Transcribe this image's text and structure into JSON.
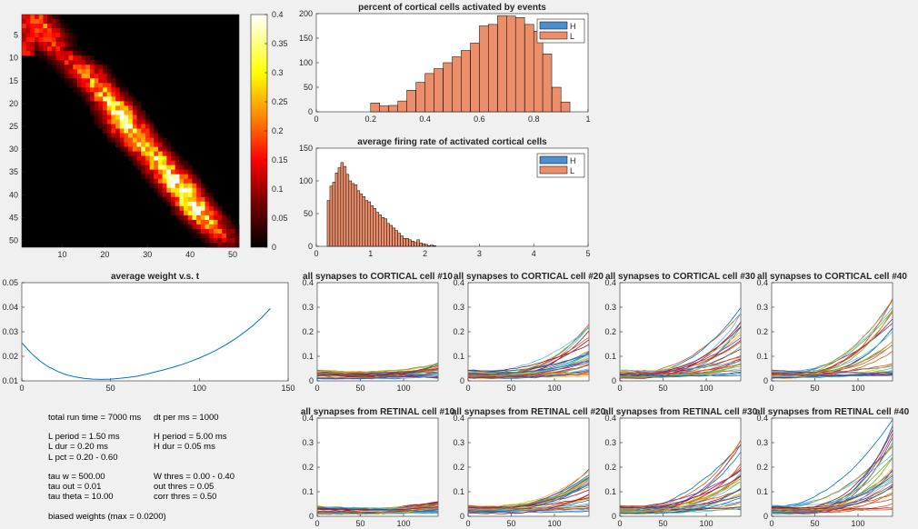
{
  "colors": {
    "background": "#f0f0f0",
    "H": "#4a90d0",
    "L": "#ec8e6a",
    "weight_line": "#0072bd",
    "line_palette": [
      "#0072bd",
      "#d95319",
      "#edb120",
      "#7e2f8e",
      "#77ac30",
      "#4dbeee",
      "#a2142f"
    ]
  },
  "chart_data": [
    {
      "id": "heatmap",
      "type": "heatmap",
      "title": "",
      "colormap": "hot",
      "rows": 51,
      "cols": 51,
      "xticks": [
        "10",
        "20",
        "30",
        "40",
        "50"
      ],
      "yticks": [
        "5",
        "10",
        "15",
        "20",
        "25",
        "30",
        "35",
        "40",
        "45",
        "50"
      ],
      "colorbar_ticks": [
        "0",
        "0.05",
        "0.1",
        "0.15",
        "0.2",
        "0.25",
        "0.3",
        "0.35",
        "0.4"
      ],
      "clim": [
        0,
        0.4
      ],
      "band": [
        {
          "row": 1,
          "centers": []
        },
        {
          "row": 3,
          "centers": [
            3,
            7
          ],
          "peak": 0.2
        },
        {
          "row": 5,
          "centers": [
            4,
            9
          ],
          "peak": 0.18
        },
        {
          "row": 8,
          "centers": [
            6,
            10
          ],
          "peak": 0.15
        },
        {
          "row": 12,
          "centers": [
            12,
            17
          ],
          "peak": 0.18
        },
        {
          "row": 16,
          "centers": [
            16,
            20
          ],
          "peak": 0.25
        },
        {
          "row": 20,
          "centers": [
            20,
            24
          ],
          "peak": 0.3
        },
        {
          "row": 24,
          "centers": [
            22,
            27
          ],
          "peak": 0.33
        },
        {
          "row": 28,
          "centers": [
            25,
            30
          ],
          "peak": 0.3
        },
        {
          "row": 32,
          "centers": [
            30,
            34
          ],
          "peak": 0.3
        },
        {
          "row": 36,
          "centers": [
            33,
            38
          ],
          "peak": 0.33
        },
        {
          "row": 40,
          "centers": [
            37,
            41
          ],
          "peak": 0.38
        },
        {
          "row": 44,
          "centers": [
            40,
            44
          ],
          "peak": 0.35
        },
        {
          "row": 48,
          "centers": [
            44,
            48
          ],
          "peak": 0.2
        },
        {
          "row": 51,
          "centers": [
            47,
            50
          ],
          "peak": 0.08
        }
      ]
    },
    {
      "id": "pct-hist",
      "type": "bar",
      "title": "percent of cortical cells activated by events",
      "legend": [
        "H",
        "L"
      ],
      "legend_position": "top-right",
      "xlim": [
        0,
        1
      ],
      "ylim": [
        0,
        200
      ],
      "xticks": [
        "0",
        "0.2",
        "0.4",
        "0.6",
        "0.8",
        "1"
      ],
      "yticks": [
        "0",
        "50",
        "100",
        "150",
        "200"
      ],
      "bin_width": 0.0333,
      "bin_starts": [
        0.2,
        0.233,
        0.267,
        0.3,
        0.333,
        0.367,
        0.4,
        0.433,
        0.467,
        0.5,
        0.533,
        0.567,
        0.6,
        0.633,
        0.667,
        0.7,
        0.733,
        0.767,
        0.8,
        0.833,
        0.867,
        0.9
      ],
      "series": [
        {
          "name": "L",
          "values": [
            18,
            12,
            13,
            22,
            44,
            60,
            78,
            88,
            100,
            112,
            125,
            140,
            175,
            178,
            196,
            195,
            192,
            178,
            164,
            118,
            50,
            20
          ]
        }
      ]
    },
    {
      "id": "rate-hist",
      "type": "bar",
      "title": "average firing rate of activated cortical cells",
      "legend": [
        "H",
        "L"
      ],
      "legend_position": "top-right",
      "xlim": [
        0,
        5
      ],
      "ylim": [
        0,
        150
      ],
      "xticks": [
        "0",
        "1",
        "2",
        "3",
        "4",
        "5"
      ],
      "yticks": [
        "0",
        "50",
        "100",
        "150"
      ],
      "bin_width": 0.05,
      "bin_starts": [
        0.2,
        0.25,
        0.3,
        0.35,
        0.4,
        0.45,
        0.5,
        0.55,
        0.6,
        0.65,
        0.7,
        0.75,
        0.8,
        0.85,
        0.9,
        0.95,
        1.0,
        1.05,
        1.1,
        1.15,
        1.2,
        1.25,
        1.3,
        1.35,
        1.4,
        1.45,
        1.5,
        1.55,
        1.6,
        1.65,
        1.7,
        1.75,
        1.8,
        1.85,
        1.9,
        1.95,
        2.0,
        2.05,
        2.1,
        2.15
      ],
      "series": [
        {
          "name": "L",
          "values": [
            70,
            92,
            98,
            112,
            120,
            128,
            122,
            110,
            100,
            96,
            94,
            85,
            80,
            76,
            70,
            68,
            62,
            58,
            52,
            48,
            44,
            42,
            35,
            32,
            28,
            24,
            20,
            16,
            12,
            12,
            10,
            8,
            6,
            10,
            5,
            4,
            3,
            1,
            2,
            1
          ]
        }
      ]
    },
    {
      "id": "avg-weight",
      "type": "line",
      "title": "average weight v.s. t",
      "xlim": [
        0,
        150
      ],
      "ylim": [
        0.01,
        0.05
      ],
      "xticks": [
        "0",
        "50",
        "100",
        "150"
      ],
      "yticks": [
        "0.01",
        "0.02",
        "0.03",
        "0.04",
        "0.05"
      ],
      "series": [
        {
          "x": [
            0,
            5,
            10,
            15,
            20,
            25,
            30,
            35,
            40,
            45,
            50,
            55,
            60,
            65,
            70,
            75,
            80,
            85,
            90,
            95,
            100,
            105,
            110,
            115,
            120,
            125,
            130,
            135,
            140
          ],
          "values": [
            0.0255,
            0.0215,
            0.0182,
            0.0157,
            0.0139,
            0.0125,
            0.0116,
            0.011,
            0.0107,
            0.0106,
            0.0107,
            0.011,
            0.0114,
            0.0119,
            0.0127,
            0.0136,
            0.0145,
            0.0155,
            0.0166,
            0.0179,
            0.0193,
            0.0209,
            0.0227,
            0.0247,
            0.027,
            0.0296,
            0.0324,
            0.0357,
            0.0395
          ]
        }
      ]
    },
    {
      "id": "cort-10",
      "type": "line",
      "title": "all synapses to CORTICAL cell #10",
      "xlim": [
        0,
        140
      ],
      "ylim": [
        0,
        0.4
      ],
      "xticks": [
        "0",
        "50",
        "100"
      ],
      "yticks": [
        "0",
        "0.1",
        "0.2",
        "0.3",
        "0.4"
      ],
      "line_count": 30,
      "end_range": [
        0.01,
        0.08
      ]
    },
    {
      "id": "cort-20",
      "type": "line",
      "title": "all synapses to CORTICAL cell #20",
      "xlim": [
        0,
        140
      ],
      "ylim": [
        0,
        0.4
      ],
      "xticks": [
        "0",
        "50",
        "100"
      ],
      "yticks": [
        "0",
        "0.1",
        "0.2",
        "0.3",
        "0.4"
      ],
      "line_count": 30,
      "end_range": [
        0.02,
        0.24
      ]
    },
    {
      "id": "cort-30",
      "type": "line",
      "title": "all synapses to CORTICAL cell #30",
      "xlim": [
        0,
        140
      ],
      "ylim": [
        0,
        0.4
      ],
      "xticks": [
        "0",
        "50",
        "100"
      ],
      "yticks": [
        "0",
        "0.1",
        "0.2",
        "0.3",
        "0.4"
      ],
      "line_count": 30,
      "end_range": [
        0.02,
        0.32
      ]
    },
    {
      "id": "cort-40",
      "type": "line",
      "title": "all synapses to CORTICAL cell #40",
      "xlim": [
        0,
        140
      ],
      "ylim": [
        0,
        0.4
      ],
      "xticks": [
        "0",
        "50",
        "100"
      ],
      "yticks": [
        "0",
        "0.1",
        "0.2",
        "0.3",
        "0.4"
      ],
      "line_count": 30,
      "end_range": [
        0.02,
        0.36
      ]
    },
    {
      "id": "ret-10",
      "type": "line",
      "title": "all synapses from RETINAL cell #10",
      "xlim": [
        0,
        140
      ],
      "ylim": [
        0,
        0.4
      ],
      "xticks": [
        "0",
        "50",
        "100"
      ],
      "yticks": [
        "0",
        "0.1",
        "0.2",
        "0.3",
        "0.4"
      ],
      "line_count": 30,
      "end_range": [
        0.01,
        0.06
      ]
    },
    {
      "id": "ret-20",
      "type": "line",
      "title": "all synapses from RETINAL cell #20",
      "xlim": [
        0,
        140
      ],
      "ylim": [
        0,
        0.4
      ],
      "xticks": [
        "0",
        "50",
        "100"
      ],
      "yticks": [
        "0",
        "0.1",
        "0.2",
        "0.3",
        "0.4"
      ],
      "line_count": 30,
      "end_range": [
        0.02,
        0.2
      ]
    },
    {
      "id": "ret-30",
      "type": "line",
      "title": "all synapses from RETINAL cell #30",
      "xlim": [
        0,
        140
      ],
      "ylim": [
        0,
        0.4
      ],
      "xticks": [
        "0",
        "50",
        "100"
      ],
      "yticks": [
        "0",
        "0.1",
        "0.2",
        "0.3",
        "0.4"
      ],
      "line_count": 30,
      "end_range": [
        0.02,
        0.32
      ]
    },
    {
      "id": "ret-40",
      "type": "line",
      "title": "all synapses from RETINAL cell #40",
      "xlim": [
        0,
        140
      ],
      "ylim": [
        0,
        0.4
      ],
      "xticks": [
        "0",
        "50",
        "100"
      ],
      "yticks": [
        "0",
        "0.1",
        "0.2",
        "0.3",
        "0.4"
      ],
      "line_count": 30,
      "end_range": [
        0.02,
        0.4
      ]
    }
  ],
  "info": {
    "run_time": "total run time = 7000 ms",
    "dt": "dt per ms = 1000",
    "l_period": "L period = 1.50 ms",
    "h_period": "H period = 5.00 ms",
    "l_dur": "L dur = 0.20 ms",
    "h_dur": "H dur = 0.05 ms",
    "l_pct": "L pct = 0.20 - 0.60",
    "tau_w": "tau w = 500.00",
    "w_thres": "W thres = 0.00 - 0.40",
    "tau_out": "tau out = 0.01",
    "out_thres": "out thres = 0.05",
    "tau_theta": "tau theta = 10.00",
    "corr_thres": "corr thres = 0.50",
    "biased": "biased weights (max = 0.0200)"
  }
}
